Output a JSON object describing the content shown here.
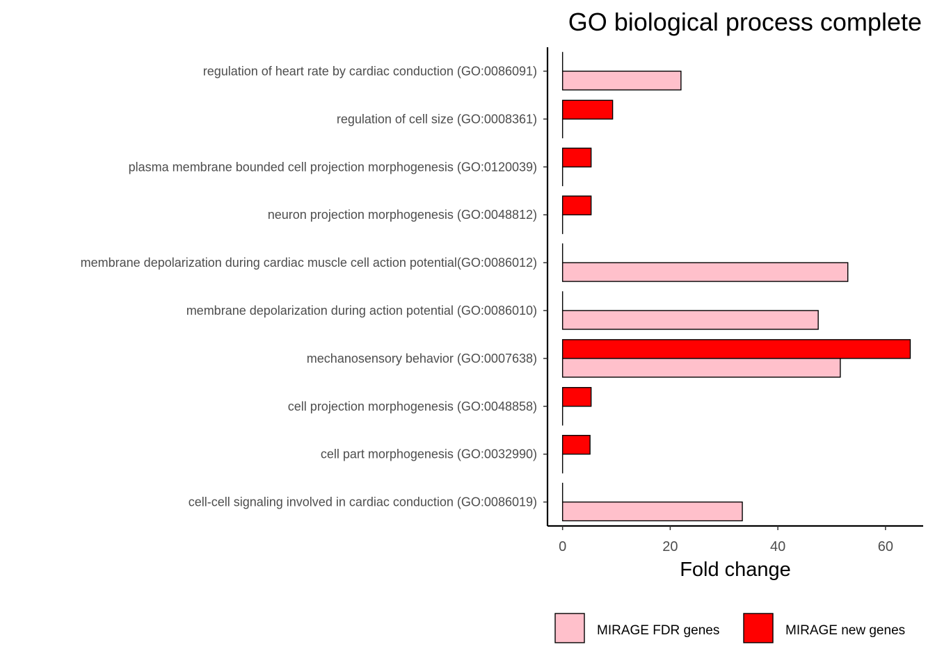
{
  "chart_data": {
    "type": "bar",
    "orientation": "horizontal",
    "title": "GO biological process complete",
    "xlabel": "Fold change",
    "ylabel": "",
    "xlim": [
      -2.8,
      67
    ],
    "xticks": [
      0,
      20,
      40,
      60
    ],
    "xtick_labels": [
      "0",
      "20",
      "40",
      "60"
    ],
    "grid": false,
    "legend_position": "bottom",
    "categories": [
      "regulation of heart rate by cardiac conduction (GO:0086091)",
      "regulation of cell size (GO:0008361)",
      "plasma membrane bounded cell projection morphogenesis (GO:0120039)",
      "neuron projection morphogenesis (GO:0048812)",
      "membrane depolarization during cardiac muscle cell action potential(GO:0086012)",
      "membrane depolarization during action potential (GO:0086010)",
      "mechanosensory behavior (GO:0007638)",
      "cell projection morphogenesis (GO:0048858)",
      "cell part morphogenesis (GO:0032990)",
      "cell-cell signaling involved in cardiac conduction (GO:0086019)"
    ],
    "series": [
      {
        "name": "MIRAGE FDR genes",
        "color": "#FFC0CB",
        "values": [
          22.0,
          0,
          0,
          0,
          53.0,
          47.5,
          51.6,
          0,
          0,
          33.4
        ]
      },
      {
        "name": "MIRAGE new genes",
        "color": "#FF0000",
        "values": [
          0,
          9.3,
          5.3,
          5.3,
          0,
          0,
          64.6,
          5.3,
          5.1,
          0
        ]
      }
    ]
  }
}
